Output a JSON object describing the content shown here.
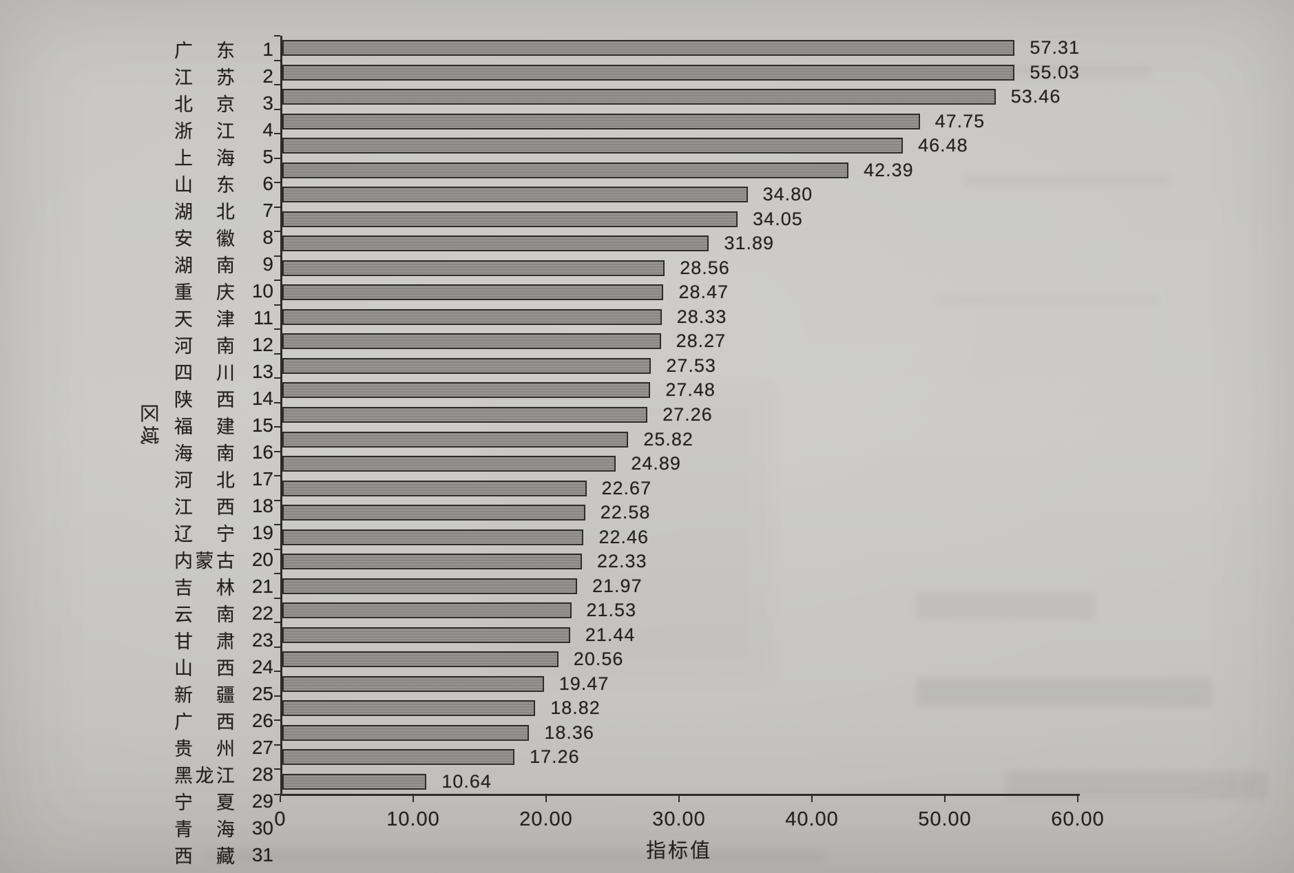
{
  "colors": {
    "axis": "#2e2c29",
    "bar_fill": "#8f8e8a",
    "bar_border": "#2f2d2a",
    "paper": "#c7c6c2"
  },
  "chart_data": {
    "type": "bar",
    "orientation": "horizontal",
    "title": "",
    "xlabel": "指标值",
    "ylabel": "区域",
    "xlim": [
      0,
      60
    ],
    "grid": false,
    "legend": "none",
    "x_tick_labels": [
      "0",
      "10.00",
      "20.00",
      "30.00",
      "40.00",
      "50.00",
      "60.00"
    ],
    "x_tick_values": [
      0,
      10,
      20,
      30,
      40,
      50,
      60
    ],
    "categories": [
      "广东",
      "江苏",
      "北京",
      "浙江",
      "上海",
      "山东",
      "湖北",
      "安徽",
      "湖南",
      "重庆",
      "天津",
      "河南",
      "四川",
      "陕西",
      "福建",
      "海南",
      "河北",
      "江西",
      "辽宁",
      "内蒙古",
      "吉林",
      "云南",
      "甘肃",
      "山西",
      "新疆",
      "广西",
      "贵州",
      "黑龙江",
      "宁夏",
      "青海",
      "西藏"
    ],
    "ranks": [
      "1",
      "2",
      "3",
      "4",
      "5",
      "6",
      "7",
      "8",
      "9",
      "10",
      "11",
      "12",
      "13",
      "14",
      "15",
      "16",
      "17",
      "18",
      "19",
      "20",
      "21",
      "22",
      "23",
      "24",
      "25",
      "26",
      "27",
      "28",
      "29",
      "30",
      "31"
    ],
    "values": [
      57.31,
      55.03,
      53.46,
      47.75,
      46.48,
      42.39,
      34.8,
      34.05,
      31.89,
      28.56,
      28.47,
      28.33,
      28.27,
      27.53,
      27.48,
      27.26,
      25.82,
      24.89,
      22.67,
      22.58,
      22.46,
      22.33,
      21.97,
      21.53,
      21.44,
      20.56,
      19.47,
      18.82,
      18.36,
      17.26,
      10.64
    ],
    "value_labels": [
      "57.31",
      "55.03",
      "53.46",
      "47.75",
      "46.48",
      "42.39",
      "34.80",
      "34.05",
      "31.89",
      "28.56",
      "28.47",
      "28.33",
      "28.27",
      "27.53",
      "27.48",
      "27.26",
      "25.82",
      "24.89",
      "22.67",
      "22.58",
      "22.46",
      "22.33",
      "21.97",
      "21.53",
      "21.44",
      "20.56",
      "19.47",
      "18.82",
      "18.36",
      "17.26",
      "10.64"
    ]
  }
}
